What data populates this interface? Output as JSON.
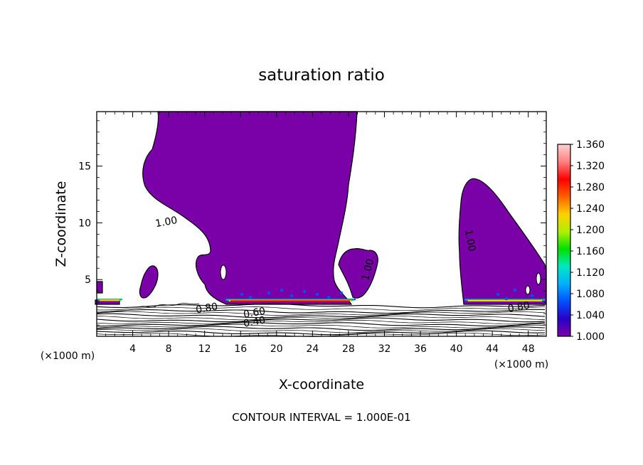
{
  "chart_data": {
    "type": "contour",
    "title": "saturation ratio",
    "xlabel": "X-coordinate",
    "ylabel": "Z-coordinate",
    "x_unit": "(×1000 m)",
    "x_unit_right": "(×1000 m)",
    "footer": "CONTOUR INTERVAL = 1.000E-01",
    "xlim": [
      0,
      50
    ],
    "ylim": [
      0,
      19.8
    ],
    "x_ticks": [
      4,
      8,
      12,
      16,
      20,
      24,
      28,
      32,
      36,
      40,
      44,
      48
    ],
    "y_ticks": [
      5,
      10,
      15
    ],
    "contour_labels": [
      {
        "text": "1.00",
        "x": 7.8,
        "y": 9.8
      },
      {
        "text": "1.00",
        "x": 30.5,
        "y": 5.8
      },
      {
        "text": "1.00",
        "x": 41.2,
        "y": 8.4
      },
      {
        "text": "0.80",
        "x": 12.3,
        "y": 2.2
      },
      {
        "text": "0.80",
        "x": 47.0,
        "y": 2.3
      },
      {
        "text": "0.60",
        "x": 17.6,
        "y": 1.8
      },
      {
        "text": "0.40",
        "x": 17.6,
        "y": 1.0
      }
    ],
    "colorbar": {
      "min": 1.0,
      "max": 1.36,
      "labels": [
        "1.000",
        "1.040",
        "1.080",
        "1.120",
        "1.160",
        "1.200",
        "1.240",
        "1.280",
        "1.320",
        "1.360"
      ],
      "colors": [
        "#7a00a8",
        "#2a00c8",
        "#0050ff",
        "#00b0ff",
        "#00e8c0",
        "#00e000",
        "#b0f000",
        "#ffd000",
        "#ff6000",
        "#ff0000",
        "#ff8080",
        "#ffd0d0"
      ]
    }
  }
}
